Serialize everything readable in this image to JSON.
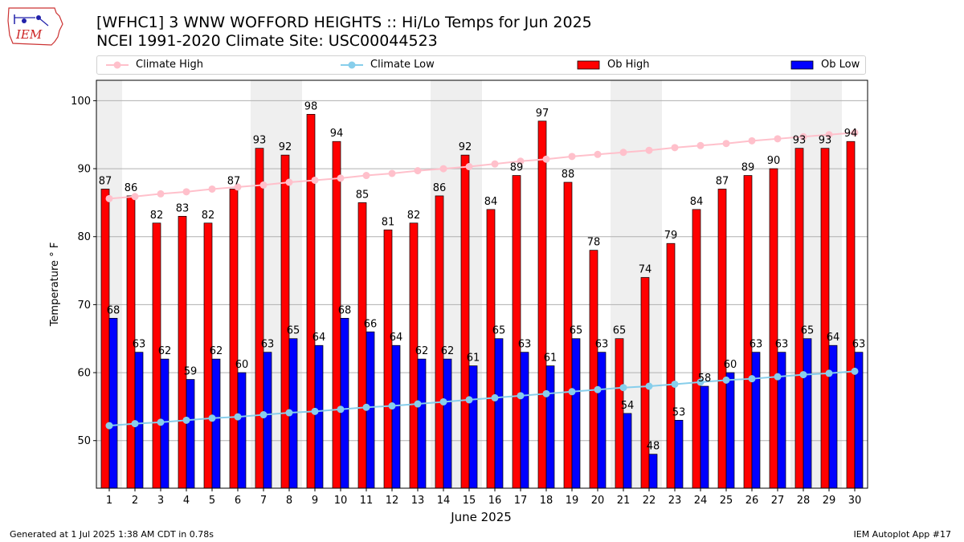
{
  "header": {
    "title_line1": "[WFHC1] 3 WNW WOFFORD HEIGHTS :: Hi/Lo Temps for Jun 2025",
    "title_line2": "NCEI 1991-2020 Climate Site: USC00044523",
    "logo_text": "IEM"
  },
  "footer": {
    "generated": "Generated at 1 Jul 2025 1:38 AM CDT in 0.78s",
    "app": "IEM Autoplot App #17"
  },
  "legend": {
    "climate_high": "Climate High",
    "climate_low": "Climate Low",
    "ob_high": "Ob High",
    "ob_low": "Ob Low"
  },
  "chart_data": {
    "type": "bar",
    "title": "[WFHC1] 3 WNW WOFFORD HEIGHTS :: Hi/Lo Temps for Jun 2025",
    "subtitle": "NCEI 1991-2020 Climate Site: USC00044523",
    "xlabel": "June 2025",
    "ylabel": "Temperature ° F",
    "ylim": [
      43,
      103
    ],
    "yticks": [
      50,
      60,
      70,
      80,
      90,
      100
    ],
    "grid": true,
    "legend_position": "top",
    "categories": [
      "1",
      "2",
      "3",
      "4",
      "5",
      "6",
      "7",
      "8",
      "9",
      "10",
      "11",
      "12",
      "13",
      "14",
      "15",
      "16",
      "17",
      "18",
      "19",
      "20",
      "21",
      "22",
      "23",
      "24",
      "25",
      "26",
      "27",
      "28",
      "29",
      "30"
    ],
    "weekend_shading_days": [
      1,
      7,
      8,
      14,
      15,
      21,
      22,
      28,
      29
    ],
    "series": [
      {
        "name": "Ob High",
        "type": "bar",
        "color": "#ff0000",
        "values": [
          87,
          86,
          82,
          83,
          82,
          87,
          93,
          92,
          98,
          94,
          85,
          81,
          82,
          86,
          92,
          84,
          89,
          97,
          88,
          78,
          65,
          74,
          79,
          84,
          87,
          89,
          90,
          93,
          93,
          94
        ]
      },
      {
        "name": "Ob Low",
        "type": "bar",
        "color": "#0000ff",
        "values": [
          68,
          63,
          62,
          59,
          62,
          60,
          63,
          65,
          64,
          68,
          66,
          64,
          62,
          62,
          61,
          65,
          63,
          61,
          65,
          63,
          54,
          48,
          53,
          58,
          60,
          63,
          63,
          65,
          64,
          63
        ]
      },
      {
        "name": "Climate High",
        "type": "line",
        "color": "#ffc0cb",
        "values": [
          85.6,
          85.9,
          86.3,
          86.6,
          87.0,
          87.3,
          87.6,
          88.0,
          88.3,
          88.6,
          89.0,
          89.3,
          89.7,
          90.0,
          90.3,
          90.7,
          91.1,
          91.4,
          91.8,
          92.1,
          92.4,
          92.7,
          93.1,
          93.4,
          93.7,
          94.1,
          94.4,
          94.7,
          95.0,
          95.3
        ]
      },
      {
        "name": "Climate Low",
        "type": "line",
        "color": "#87ceeb",
        "values": [
          52.2,
          52.5,
          52.7,
          53.0,
          53.3,
          53.5,
          53.8,
          54.1,
          54.3,
          54.6,
          54.9,
          55.1,
          55.4,
          55.7,
          56.0,
          56.3,
          56.6,
          56.9,
          57.2,
          57.5,
          57.8,
          58.0,
          58.3,
          58.6,
          58.9,
          59.1,
          59.4,
          59.7,
          59.9,
          60.2
        ]
      }
    ]
  }
}
